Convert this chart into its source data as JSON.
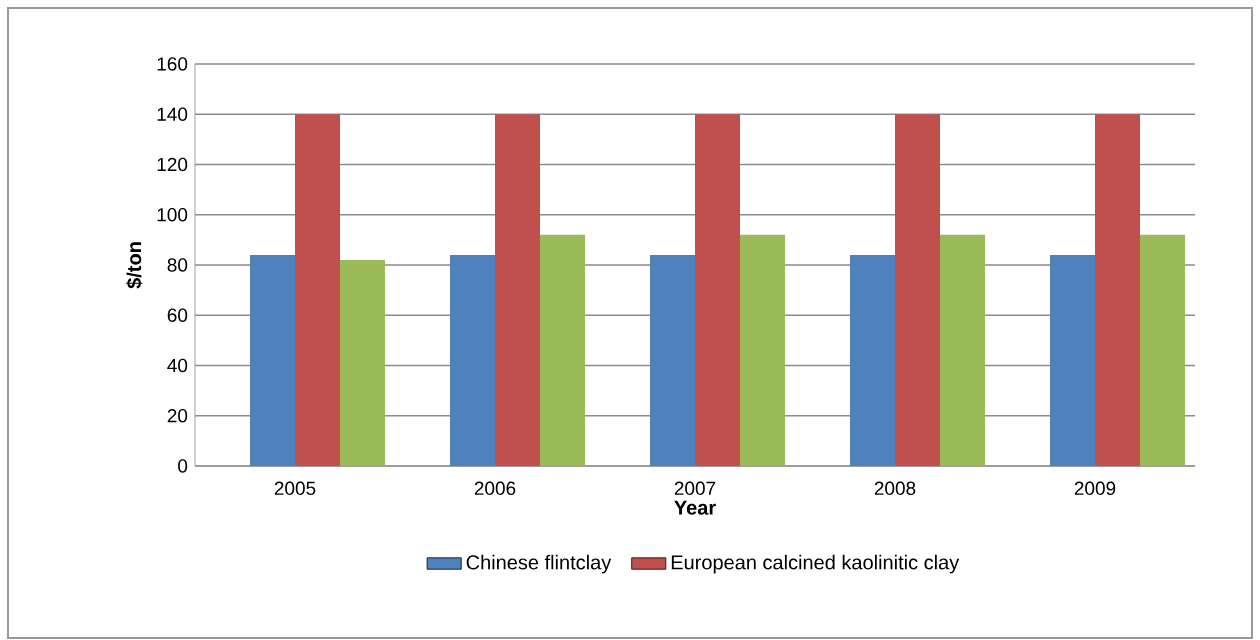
{
  "chart_data": {
    "type": "bar",
    "xlabel": "Year",
    "ylabel": "$/ton",
    "categories": [
      "2005",
      "2006",
      "2007",
      "2008",
      "2009"
    ],
    "series": [
      {
        "name": "Chinese flintclay",
        "color": "#4f81bd",
        "values": [
          84,
          84,
          84,
          84,
          84
        ]
      },
      {
        "name": "European calcined kaolinitic clay",
        "color": "#c0504d",
        "values": [
          140,
          140,
          140,
          140,
          140
        ]
      },
      {
        "color": "#9bbb59",
        "values": [
          82,
          92,
          92,
          92,
          92
        ]
      }
    ],
    "ylim": [
      0,
      160
    ],
    "yticks": [
      0,
      20,
      40,
      60,
      80,
      100,
      120,
      140,
      160
    ],
    "grid": "y",
    "legend": "bottom"
  }
}
